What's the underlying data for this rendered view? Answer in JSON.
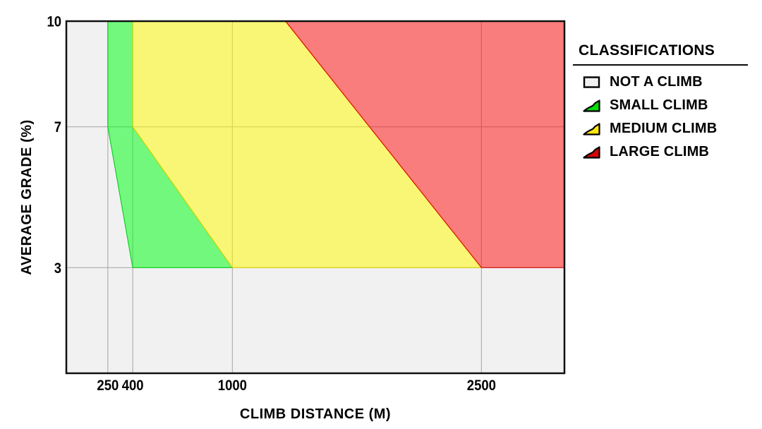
{
  "legend": {
    "title": "CLASSIFICATIONS",
    "items": [
      {
        "label": "NOT A CLIMB",
        "swatch": "square-icon",
        "color": "#f0f0f1"
      },
      {
        "label": "SMALL CLIMB",
        "swatch": "climb-icon",
        "color": "#00dc0a"
      },
      {
        "label": "MEDIUM CLIMB",
        "swatch": "climb-icon",
        "color": "#ffe70a"
      },
      {
        "label": "LARGE CLIMB",
        "swatch": "climb-icon",
        "color": "#d40505"
      }
    ]
  },
  "chart_data": {
    "type": "area",
    "title": "",
    "xlabel": "CLIMB DISTANCE (M)",
    "ylabel": "AVERAGE GRADE (%)",
    "xlim": [
      0,
      3000
    ],
    "ylim": [
      0,
      10
    ],
    "x_ticks": [
      250,
      400,
      1000,
      2500
    ],
    "y_ticks": [
      10,
      7,
      3
    ],
    "grid": true,
    "legend_position": "right",
    "plot_background": "#f1f1f2",
    "gridline_color": "#ababab",
    "regions": [
      {
        "name": "NOT A CLIMB",
        "fill": "#f1f1f2",
        "note": "background: everything below 3% grade, left of the small-climb boundary"
      },
      {
        "name": "SMALL CLIMB",
        "fill": "rgba(0,255,20,0.52)",
        "edge": "rgba(0,205,20,0.9)",
        "vertices_distance_grade": [
          [
            250,
            10
          ],
          [
            400,
            10
          ],
          [
            400,
            7
          ],
          [
            1000,
            3
          ],
          [
            400,
            3
          ],
          [
            250,
            7
          ]
        ]
      },
      {
        "name": "MEDIUM CLIMB",
        "fill": "rgba(255,252,0,0.52)",
        "edge": "rgba(222,212,0,0.9)",
        "vertices_distance_grade": [
          [
            400,
            10
          ],
          [
            1320,
            10
          ],
          [
            2500,
            3
          ],
          [
            1000,
            3
          ],
          [
            400,
            7
          ]
        ]
      },
      {
        "name": "LARGE CLIMB",
        "fill": "rgba(255,10,5,0.5)",
        "edge": "rgba(218,0,0,0.9)",
        "vertices_distance_grade": [
          [
            1320,
            10
          ],
          [
            3000,
            10
          ],
          [
            3000,
            3
          ],
          [
            2500,
            3
          ]
        ]
      }
    ]
  }
}
